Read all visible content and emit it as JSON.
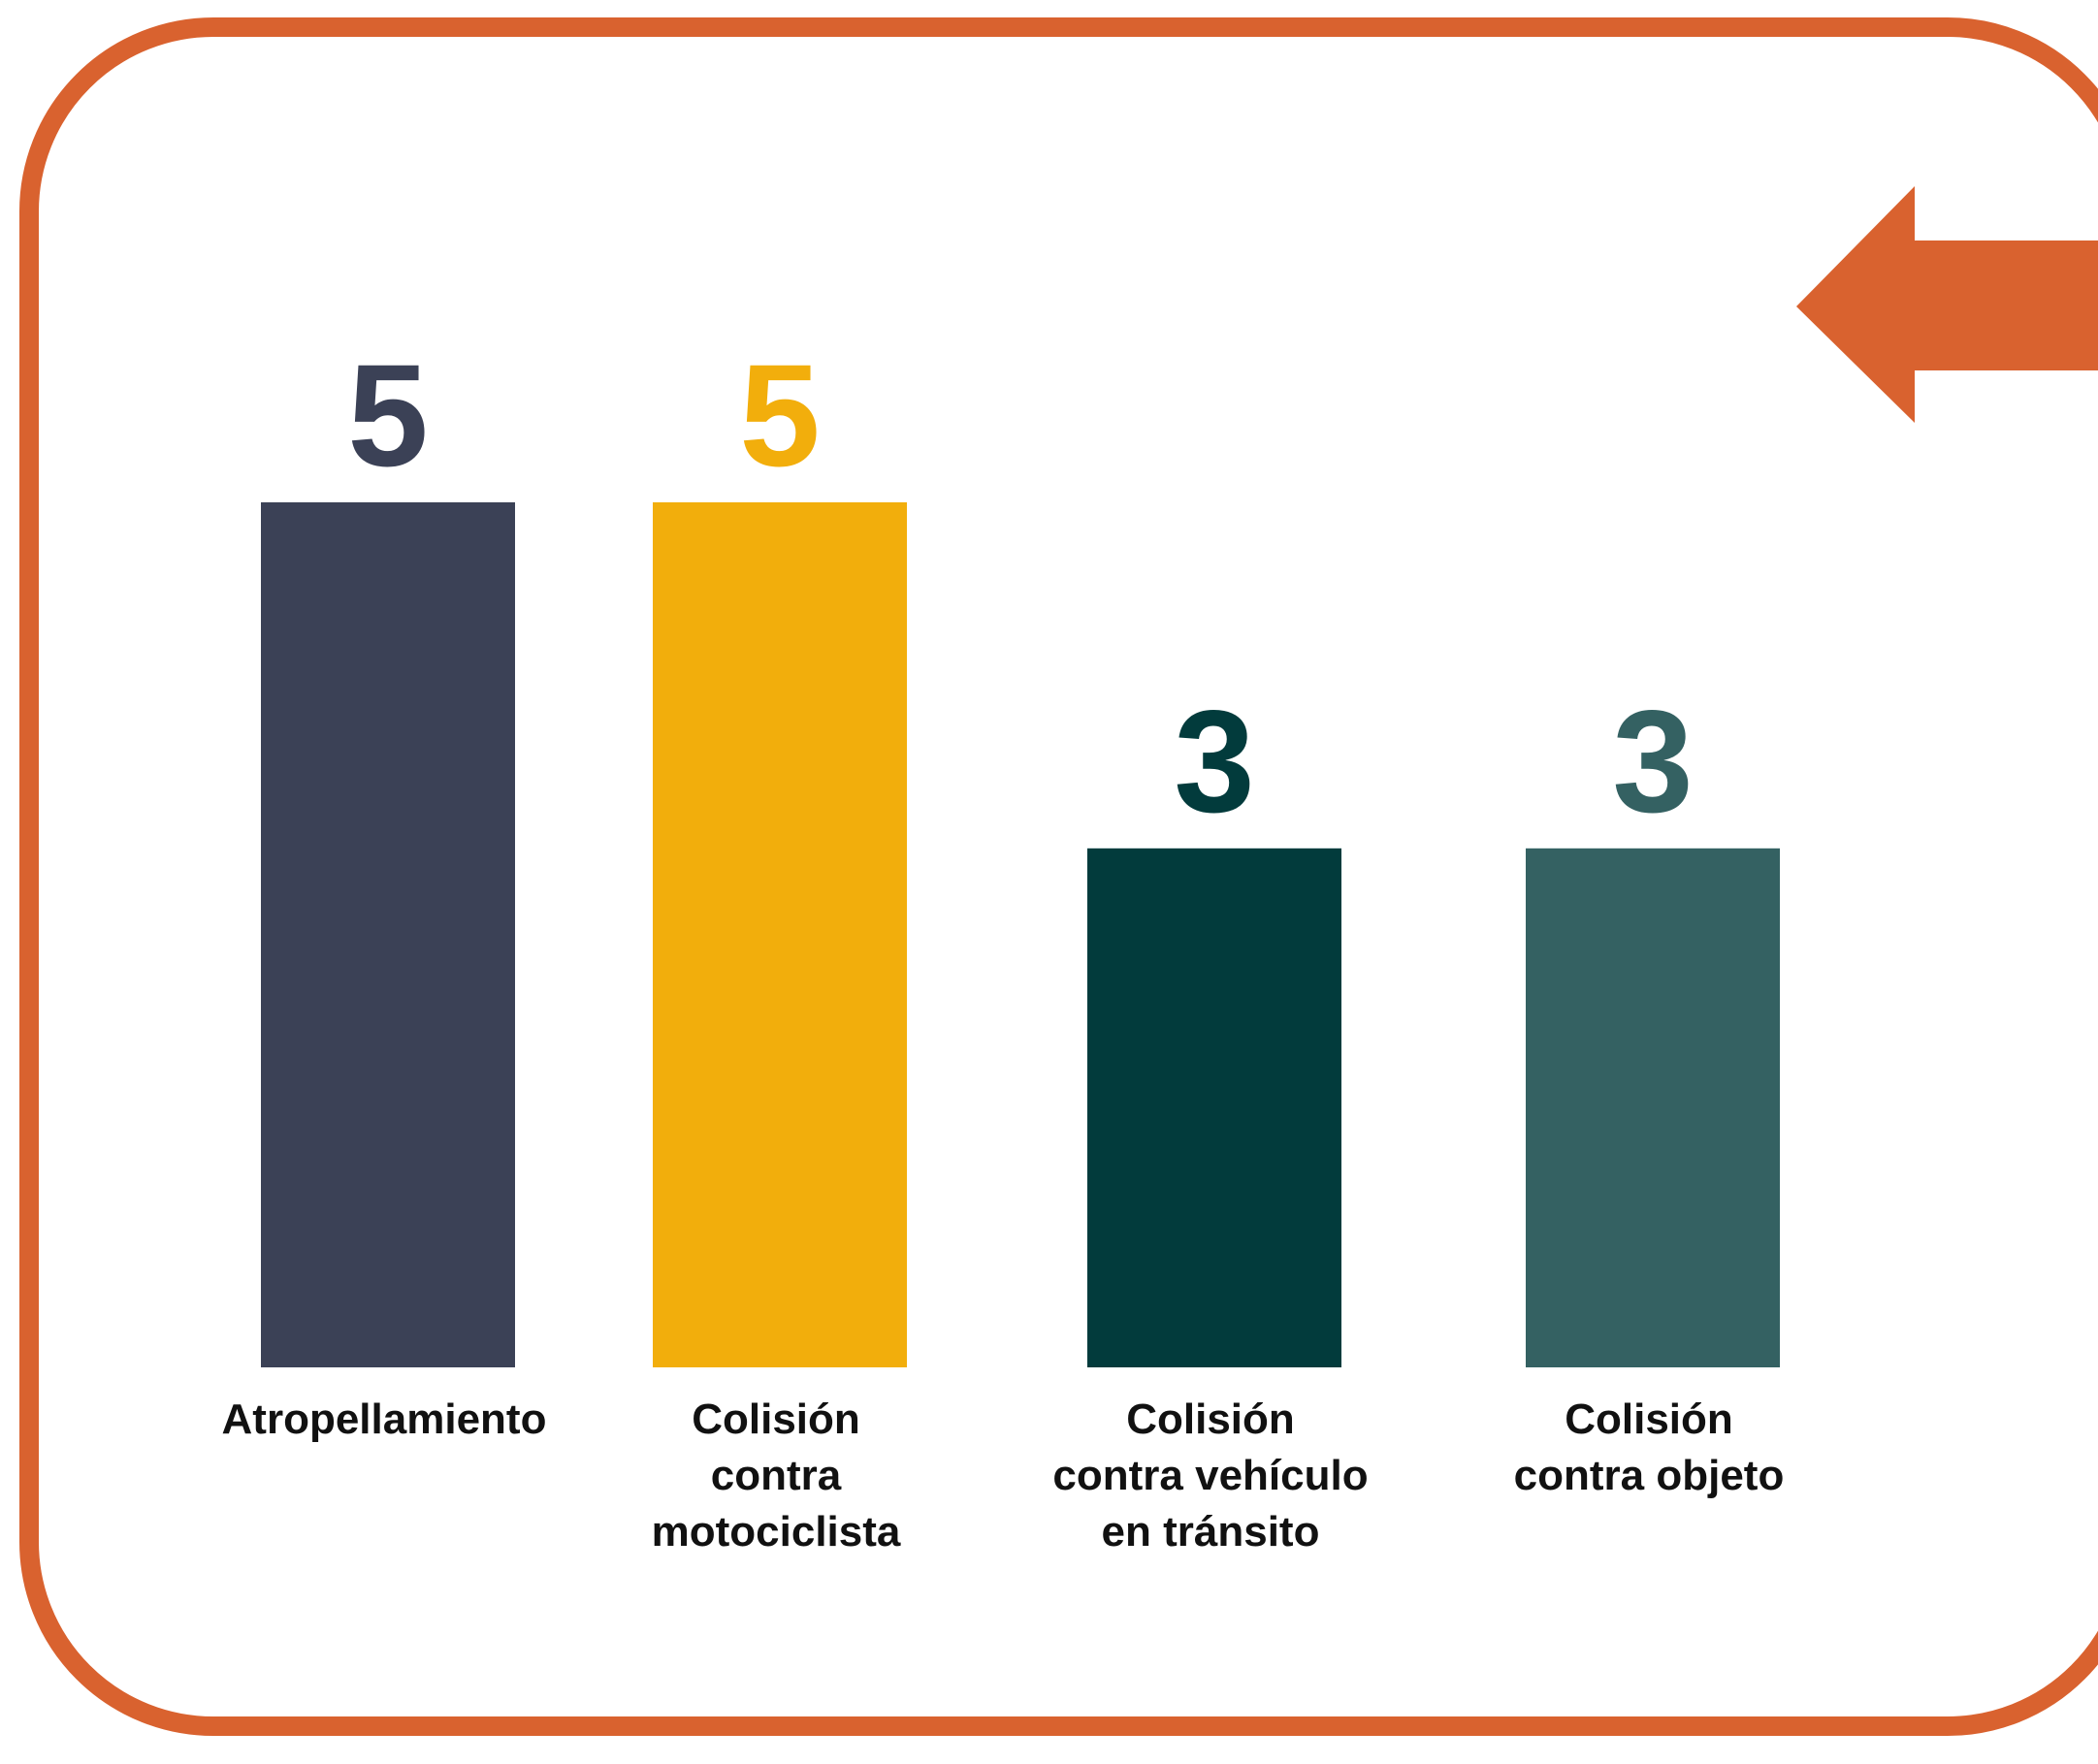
{
  "frame": {
    "border_color": "#D9622F",
    "arrow_color": "#D9622F",
    "arrow_direction": "left"
  },
  "chart_data": {
    "type": "bar",
    "categories": [
      "Atropellamiento",
      "Colisión contra motociclista",
      "Colisión contra vehículo en tránsito",
      "Colisión contra objeto"
    ],
    "category_lines": [
      [
        "Atropellamiento"
      ],
      [
        "Colisión",
        "contra",
        "motociclista"
      ],
      [
        "Colisión",
        "contra vehículo",
        "en tránsito"
      ],
      [
        "Colisión",
        "contra objeto"
      ]
    ],
    "values": [
      5,
      5,
      3,
      3
    ],
    "value_labels": [
      "5",
      "5",
      "3",
      "3"
    ],
    "colors": [
      "#3B4156",
      "#F2AE0C",
      "#023B3C",
      "#346162"
    ],
    "ylim": [
      0,
      5
    ],
    "grid": false,
    "legend": "none",
    "title": "",
    "xlabel": "",
    "ylabel": ""
  }
}
